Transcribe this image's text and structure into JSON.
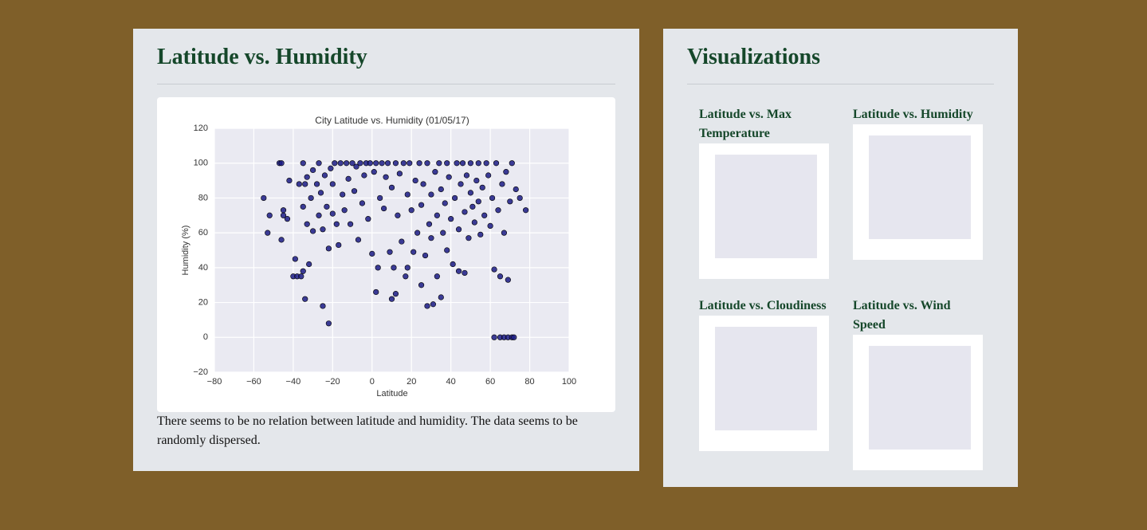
{
  "main_panel": {
    "title": "Latitude vs. Humidity",
    "description": "There seems to be no relation between latitude and humidity. The data seems to be randomly dispersed."
  },
  "chart_data": {
    "type": "scatter",
    "title": "City Latitude vs. Humidity (01/05/17)",
    "x_label": "Latitude",
    "y_label": "Humidity (%)",
    "color": "#1b1b85",
    "grid": true,
    "xlim": [
      -80,
      100
    ],
    "ylim": [
      -20,
      120
    ],
    "xticks": [
      {
        "value": -80,
        "label": "−80"
      },
      {
        "value": -60,
        "label": "−60"
      },
      {
        "value": -40,
        "label": "−40"
      },
      {
        "value": -20,
        "label": "−20"
      },
      0,
      20,
      40,
      60,
      80,
      100
    ],
    "yticks": [
      {
        "value": -20,
        "label": "−20"
      },
      0,
      20,
      40,
      60,
      80,
      100,
      120
    ],
    "x": [
      -55,
      -53,
      -52,
      -47,
      -46,
      -46,
      -45,
      -45,
      -43,
      -42,
      -40,
      -39,
      -38,
      -37,
      -36,
      -35,
      -35,
      -35,
      -34,
      -34,
      -33,
      -33,
      -32,
      -31,
      -30,
      -30,
      -28,
      -27,
      -27,
      -26,
      -25,
      -25,
      -24,
      -23,
      -22,
      -22,
      -21,
      -20,
      -20,
      -19,
      -18,
      -17,
      -16,
      -15,
      -14,
      -13,
      -12,
      -11,
      -10,
      -9,
      -8,
      -7,
      -6,
      -5,
      -4,
      -3,
      -2,
      -1,
      0,
      1,
      2,
      2,
      3,
      4,
      5,
      6,
      7,
      8,
      9,
      10,
      10,
      11,
      12,
      12,
      13,
      14,
      15,
      16,
      17,
      18,
      18,
      19,
      20,
      21,
      22,
      23,
      24,
      25,
      25,
      26,
      27,
      28,
      28,
      29,
      30,
      30,
      31,
      32,
      33,
      33,
      34,
      35,
      35,
      36,
      37,
      38,
      38,
      39,
      40,
      41,
      42,
      43,
      44,
      44,
      45,
      46,
      47,
      47,
      48,
      49,
      50,
      50,
      51,
      52,
      53,
      54,
      54,
      55,
      56,
      57,
      58,
      59,
      60,
      61,
      62,
      62,
      63,
      64,
      65,
      65,
      66,
      67,
      67,
      68,
      69,
      69,
      70,
      71,
      71,
      72,
      73,
      75,
      78
    ],
    "values": [
      80,
      60,
      70,
      100,
      100,
      56,
      70,
      73,
      68,
      90,
      35,
      45,
      35,
      88,
      35,
      100,
      38,
      75,
      22,
      88,
      92,
      65,
      42,
      80,
      61,
      96,
      88,
      70,
      100,
      83,
      18,
      62,
      93,
      75,
      51,
      8,
      97,
      71,
      88,
      100,
      65,
      53,
      100,
      82,
      73,
      100,
      91,
      65,
      100,
      84,
      98,
      56,
      100,
      77,
      93,
      100,
      68,
      100,
      48,
      95,
      26,
      100,
      40,
      80,
      100,
      74,
      92,
      100,
      49,
      22,
      86,
      40,
      25,
      100,
      70,
      94,
      55,
      100,
      35,
      82,
      40,
      100,
      73,
      49,
      90,
      60,
      100,
      30,
      76,
      88,
      47,
      18,
      100,
      65,
      82,
      57,
      19,
      95,
      70,
      35,
      100,
      23,
      85,
      60,
      77,
      50,
      100,
      92,
      68,
      42,
      80,
      100,
      62,
      38,
      88,
      100,
      72,
      37,
      93,
      57,
      100,
      83,
      75,
      66,
      90,
      100,
      78,
      59,
      86,
      70,
      100,
      93,
      64,
      80,
      39,
      0,
      100,
      73,
      35,
      0,
      88,
      60,
      0,
      95,
      33,
      0,
      78,
      100,
      0,
      0,
      85,
      80,
      73
    ]
  },
  "sidebar": {
    "title": "Visualizations",
    "items": [
      {
        "title": "Latitude vs. Max Temperature"
      },
      {
        "title": "Latitude vs. Humidity"
      },
      {
        "title": "Latitude vs. Cloudiness"
      },
      {
        "title": "Latitude vs. Wind Speed"
      }
    ]
  }
}
